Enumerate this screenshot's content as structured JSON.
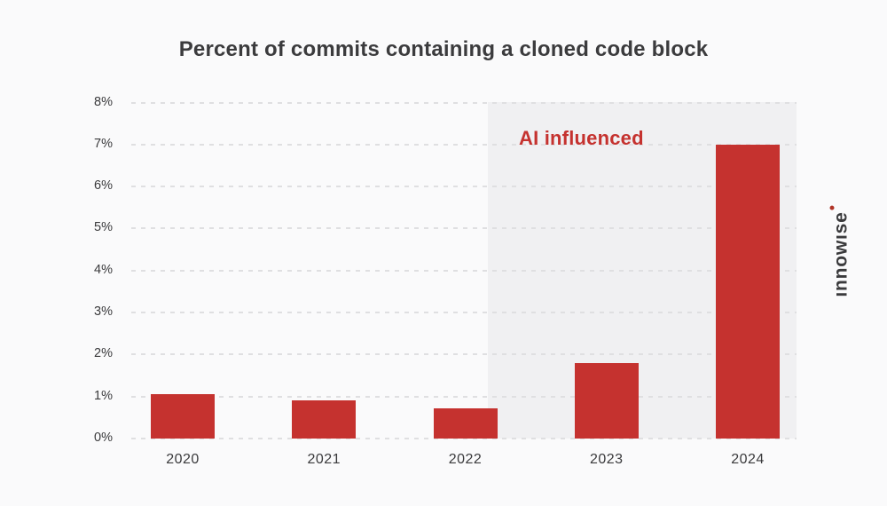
{
  "header": {
    "title": "Percent of commits containing a cloned code block"
  },
  "annotation": {
    "label": "AI influenced"
  },
  "logo": {
    "text": "ınnowıse",
    "dot_icon": "red-dot"
  },
  "colors": {
    "page_bg": "#FAFAFB",
    "region": "#F0F0F2",
    "bar": "#C5322F",
    "annotation": "#C5322F",
    "grid": "#DFDFE1",
    "text": "#3A3A3C",
    "title": "#3B3B3D",
    "logo_dot": "#B03427"
  },
  "chart_data": {
    "type": "bar",
    "title": "Percent of commits containing a cloned code block",
    "categories": [
      "2020",
      "2021",
      "2022",
      "2023",
      "2024"
    ],
    "values": [
      1.05,
      0.9,
      0.72,
      1.8,
      7.0
    ],
    "xlabel": "",
    "ylabel": "",
    "ylim": [
      0,
      8
    ],
    "ytick_step": 1,
    "ytick_format": "{v}%",
    "grid": "horizontal-dashed",
    "legend": "none",
    "bar_color": "#C5322F",
    "annotations": [
      {
        "text": "AI influenced",
        "type": "highlight-region",
        "covers_categories": [
          "2023",
          "2024"
        ]
      }
    ]
  }
}
